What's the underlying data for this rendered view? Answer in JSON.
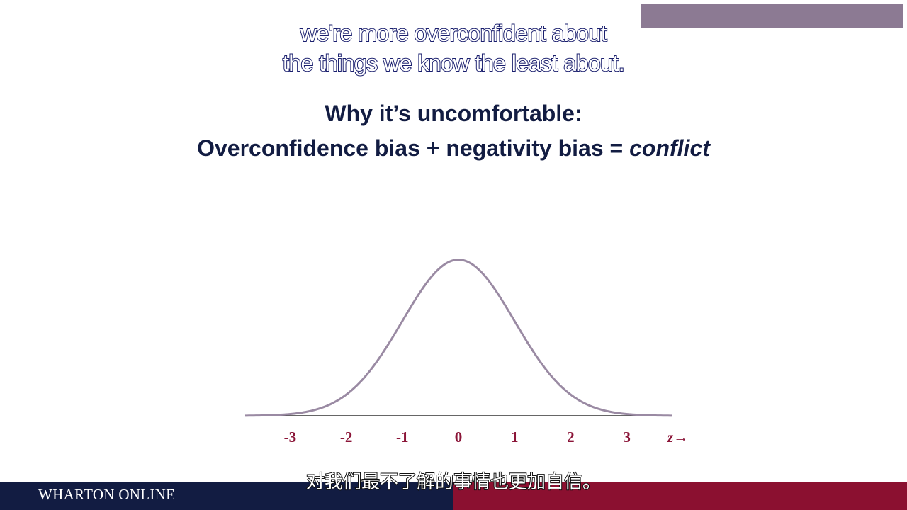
{
  "subtitles": {
    "english_line1": "we're more overconfident about",
    "english_line2": "the things we know the least about.",
    "chinese": "对我们最不了解的事情也更加自信。"
  },
  "slide": {
    "heading_line1": "Why it’s uncomfortable:",
    "heading_line2_prefix": "Overconfidence bias + negativity bias = ",
    "heading_line2_emphasis": "conflict"
  },
  "chart_data": {
    "type": "line",
    "title": "",
    "xlabel": "z→",
    "ylabel": "",
    "x_ticks": [
      "-3",
      "-2",
      "-1",
      "0",
      "1",
      "2",
      "3"
    ],
    "xlim": [
      -3.8,
      3.8
    ],
    "ylim": [
      0,
      0.4
    ],
    "series": [
      {
        "function": "standard normal density",
        "x": [
          -3.8,
          -3.5,
          -3,
          -2.5,
          -2,
          -1.5,
          -1,
          -0.5,
          0,
          0.5,
          1,
          1.5,
          2,
          2.5,
          3,
          3.5,
          3.8
        ],
        "values": [
          0.0003,
          0.0009,
          0.0044,
          0.0175,
          0.054,
          0.1295,
          0.242,
          0.3521,
          0.3989,
          0.3521,
          0.242,
          0.1295,
          0.054,
          0.0175,
          0.0044,
          0.0009,
          0.0003
        ]
      }
    ],
    "grid": false,
    "colors": {
      "curve": "#9a8aa3",
      "tick_labels": "#8b1538",
      "axis": "#333333"
    }
  },
  "footer": {
    "brand": "WHARTON ONLINE",
    "left_color": "#121c42",
    "right_color": "#8b1030"
  },
  "top_bar": {
    "color": "#8c7a93"
  }
}
